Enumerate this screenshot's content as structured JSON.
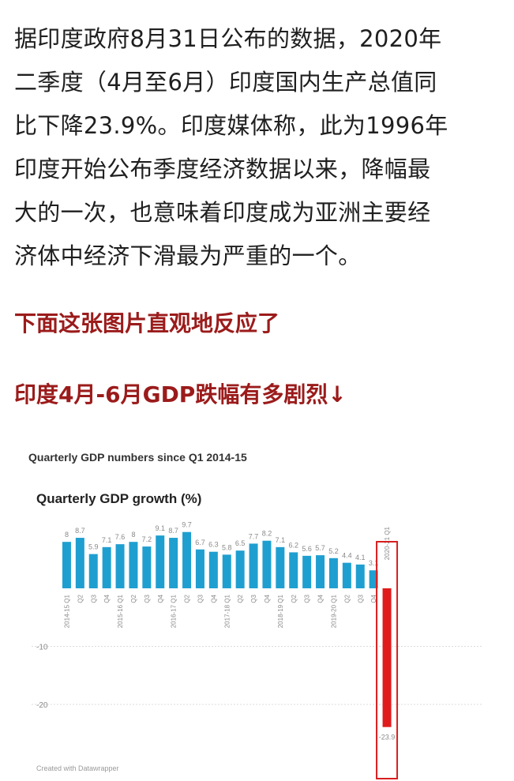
{
  "article": {
    "paragraph_lines": [
      "据印度政府8月31日公布的数据，2020年",
      "二季度（4月至6月）印度国内生产总值同",
      "比下降23.9%。印度媒体称，此为1996年",
      "印度开始公布季度经济数据以来，降幅最",
      "大的一次，也意味着印度成为亚洲主要经",
      "济体中经济下滑最为严重的一个。"
    ],
    "highlight_1": "下面这张图片直观地反应了",
    "highlight_2": "印度4月-6月GDP跌幅有多剧烈↓"
  },
  "colors": {
    "text": "#1f1f1f",
    "highlight": "#9b1b1b",
    "bar": "#1f9fd0",
    "bar_negative": "#e01b1b",
    "box": "#d81e1e",
    "gridline": "#dcdcdc",
    "label": "#8a8a8a"
  },
  "chart_data": {
    "type": "bar",
    "header": "Quarterly GDP numbers since Q1 2014-15",
    "title": "Quarterly GDP growth (%)",
    "footer": "Created with Datawrapper",
    "categories": [
      "2014-15 Q1",
      "Q2",
      "Q3",
      "Q4",
      "2015-16 Q1",
      "Q2",
      "Q3",
      "Q4",
      "2016-17 Q1",
      "Q2",
      "Q3",
      "Q4",
      "2017-18 Q1",
      "Q2",
      "Q3",
      "Q4",
      "2018-19 Q1",
      "Q2",
      "Q3",
      "Q4",
      "2019-20 Q1",
      "Q2",
      "Q3",
      "Q4",
      "2020-21 Q1"
    ],
    "values": [
      8,
      8.7,
      5.9,
      7.1,
      7.6,
      8,
      7.2,
      9.1,
      8.7,
      9.7,
      6.7,
      6.3,
      5.8,
      6.5,
      7.7,
      8.2,
      7.1,
      6.2,
      5.6,
      5.7,
      5.2,
      4.4,
      4.1,
      3.1,
      -23.9
    ],
    "data_labels": [
      "8",
      "8.7",
      "5.9",
      "7.1",
      "7.6",
      "8",
      "7.2",
      "9.1",
      "8.7",
      "9.7",
      "6.7",
      "6.3",
      "5.8",
      "6.5",
      "7.7",
      "8.2",
      "7.1",
      "6.2",
      "5.6",
      "5.7",
      "5.2",
      "4.4",
      "4.1",
      "3.1",
      "-23.9"
    ],
    "y_ticks": [
      "-10",
      "-20"
    ],
    "y_tick_values": [
      -10,
      -20
    ],
    "ylim": [
      -25,
      10.5
    ],
    "highlighted_category": "2020-21 Q1",
    "grid": true,
    "legend": "none"
  }
}
